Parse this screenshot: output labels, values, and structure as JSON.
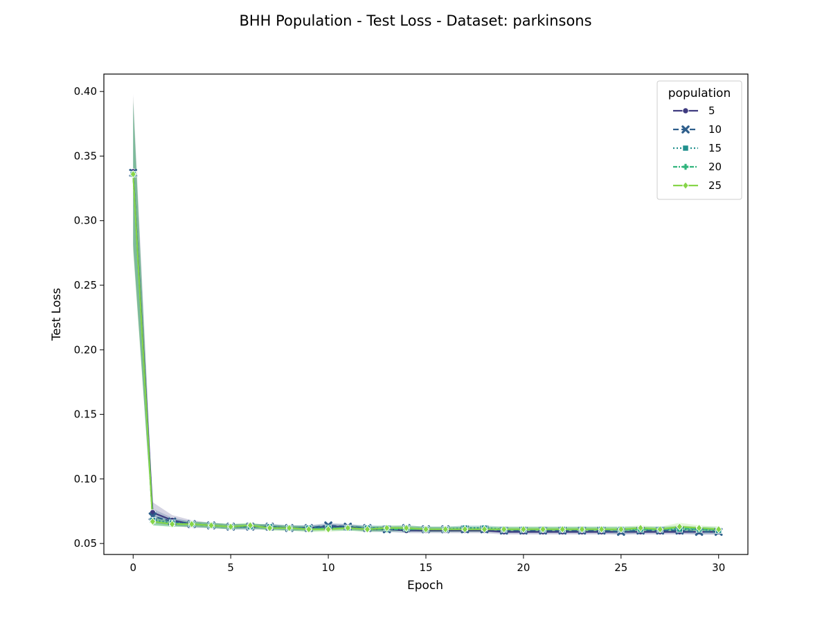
{
  "chart_data": {
    "type": "line",
    "title": "BHH Population - Test Loss - Dataset: parkinsons",
    "xlabel": "Epoch",
    "ylabel": "Test Loss",
    "xlim": [
      -1.5,
      31.5
    ],
    "ylim": [
      0.0415,
      0.4135
    ],
    "xticks": [
      0,
      5,
      10,
      15,
      20,
      25,
      30
    ],
    "yticks": [
      0.05,
      0.1,
      0.15,
      0.2,
      0.25,
      0.3,
      0.35,
      0.4
    ],
    "ytick_labels": [
      "0.05",
      "0.10",
      "0.15",
      "0.20",
      "0.25",
      "0.30",
      "0.35",
      "0.40"
    ],
    "grid": false,
    "legend": {
      "title": "population",
      "placement": "top-right"
    },
    "x": [
      0,
      1,
      2,
      3,
      4,
      5,
      6,
      7,
      8,
      9,
      10,
      11,
      12,
      13,
      14,
      15,
      16,
      17,
      18,
      19,
      20,
      21,
      22,
      23,
      24,
      25,
      26,
      27,
      28,
      29,
      30
    ],
    "series": [
      {
        "name": "5",
        "color": "#3e3a7f",
        "dash": "",
        "marker": "circle",
        "values": [
          0.338,
          0.074,
          0.068,
          0.065,
          0.064,
          0.063,
          0.063,
          0.063,
          0.062,
          0.062,
          0.063,
          0.063,
          0.061,
          0.061,
          0.06,
          0.06,
          0.06,
          0.06,
          0.06,
          0.059,
          0.059,
          0.059,
          0.059,
          0.059,
          0.059,
          0.059,
          0.059,
          0.059,
          0.059,
          0.059,
          0.059
        ],
        "band": [
          0.06,
          0.008,
          0.004,
          0.003,
          0.002,
          0.002,
          0.002,
          0.002,
          0.002,
          0.002,
          0.002,
          0.002,
          0.002,
          0.002,
          0.002,
          0.002,
          0.002,
          0.002,
          0.002,
          0.002,
          0.002,
          0.002,
          0.002,
          0.002,
          0.002,
          0.002,
          0.002,
          0.002,
          0.002,
          0.002,
          0.002
        ]
      },
      {
        "name": "10",
        "color": "#2e5e8b",
        "dash": "8 4",
        "marker": "x",
        "values": [
          0.337,
          0.071,
          0.067,
          0.065,
          0.064,
          0.063,
          0.063,
          0.063,
          0.062,
          0.062,
          0.064,
          0.063,
          0.062,
          0.061,
          0.062,
          0.061,
          0.061,
          0.061,
          0.061,
          0.06,
          0.06,
          0.06,
          0.06,
          0.06,
          0.06,
          0.059,
          0.06,
          0.06,
          0.06,
          0.059,
          0.059
        ],
        "band": [
          0.055,
          0.006,
          0.003,
          0.002,
          0.002,
          0.002,
          0.002,
          0.002,
          0.002,
          0.002,
          0.002,
          0.002,
          0.002,
          0.002,
          0.002,
          0.002,
          0.002,
          0.002,
          0.002,
          0.002,
          0.002,
          0.002,
          0.002,
          0.002,
          0.002,
          0.002,
          0.002,
          0.002,
          0.002,
          0.002,
          0.002
        ]
      },
      {
        "name": "15",
        "color": "#21908d",
        "dash": "2 3",
        "marker": "square",
        "values": [
          0.336,
          0.068,
          0.066,
          0.065,
          0.064,
          0.063,
          0.063,
          0.063,
          0.062,
          0.062,
          0.062,
          0.062,
          0.062,
          0.062,
          0.062,
          0.061,
          0.061,
          0.062,
          0.062,
          0.061,
          0.061,
          0.061,
          0.061,
          0.061,
          0.061,
          0.061,
          0.061,
          0.061,
          0.061,
          0.061,
          0.06
        ],
        "band": [
          0.055,
          0.004,
          0.003,
          0.002,
          0.002,
          0.002,
          0.002,
          0.002,
          0.002,
          0.002,
          0.002,
          0.002,
          0.002,
          0.002,
          0.002,
          0.002,
          0.002,
          0.002,
          0.002,
          0.002,
          0.002,
          0.002,
          0.002,
          0.002,
          0.002,
          0.002,
          0.002,
          0.002,
          0.002,
          0.002,
          0.002
        ]
      },
      {
        "name": "20",
        "color": "#2fb47c",
        "dash": "6 2 2 2",
        "marker": "plus",
        "values": [
          0.336,
          0.067,
          0.065,
          0.065,
          0.064,
          0.063,
          0.064,
          0.062,
          0.062,
          0.061,
          0.062,
          0.062,
          0.061,
          0.061,
          0.061,
          0.061,
          0.061,
          0.061,
          0.061,
          0.061,
          0.061,
          0.061,
          0.061,
          0.061,
          0.061,
          0.061,
          0.061,
          0.061,
          0.062,
          0.061,
          0.061
        ],
        "band": [
          0.055,
          0.003,
          0.002,
          0.002,
          0.002,
          0.002,
          0.002,
          0.002,
          0.002,
          0.002,
          0.002,
          0.002,
          0.002,
          0.002,
          0.002,
          0.002,
          0.002,
          0.002,
          0.002,
          0.002,
          0.002,
          0.002,
          0.002,
          0.002,
          0.002,
          0.002,
          0.002,
          0.002,
          0.002,
          0.002,
          0.002
        ]
      },
      {
        "name": "25",
        "color": "#86d549",
        "dash": "",
        "marker": "diamond",
        "values": [
          0.336,
          0.067,
          0.065,
          0.065,
          0.064,
          0.063,
          0.064,
          0.062,
          0.062,
          0.061,
          0.061,
          0.062,
          0.061,
          0.062,
          0.062,
          0.061,
          0.061,
          0.061,
          0.061,
          0.061,
          0.061,
          0.061,
          0.061,
          0.061,
          0.061,
          0.061,
          0.062,
          0.061,
          0.063,
          0.062,
          0.061
        ],
        "band": [
          0.06,
          0.003,
          0.002,
          0.002,
          0.002,
          0.002,
          0.002,
          0.002,
          0.002,
          0.002,
          0.002,
          0.002,
          0.002,
          0.002,
          0.002,
          0.002,
          0.002,
          0.002,
          0.002,
          0.002,
          0.002,
          0.002,
          0.002,
          0.002,
          0.002,
          0.002,
          0.002,
          0.002,
          0.003,
          0.002,
          0.002
        ]
      }
    ]
  }
}
